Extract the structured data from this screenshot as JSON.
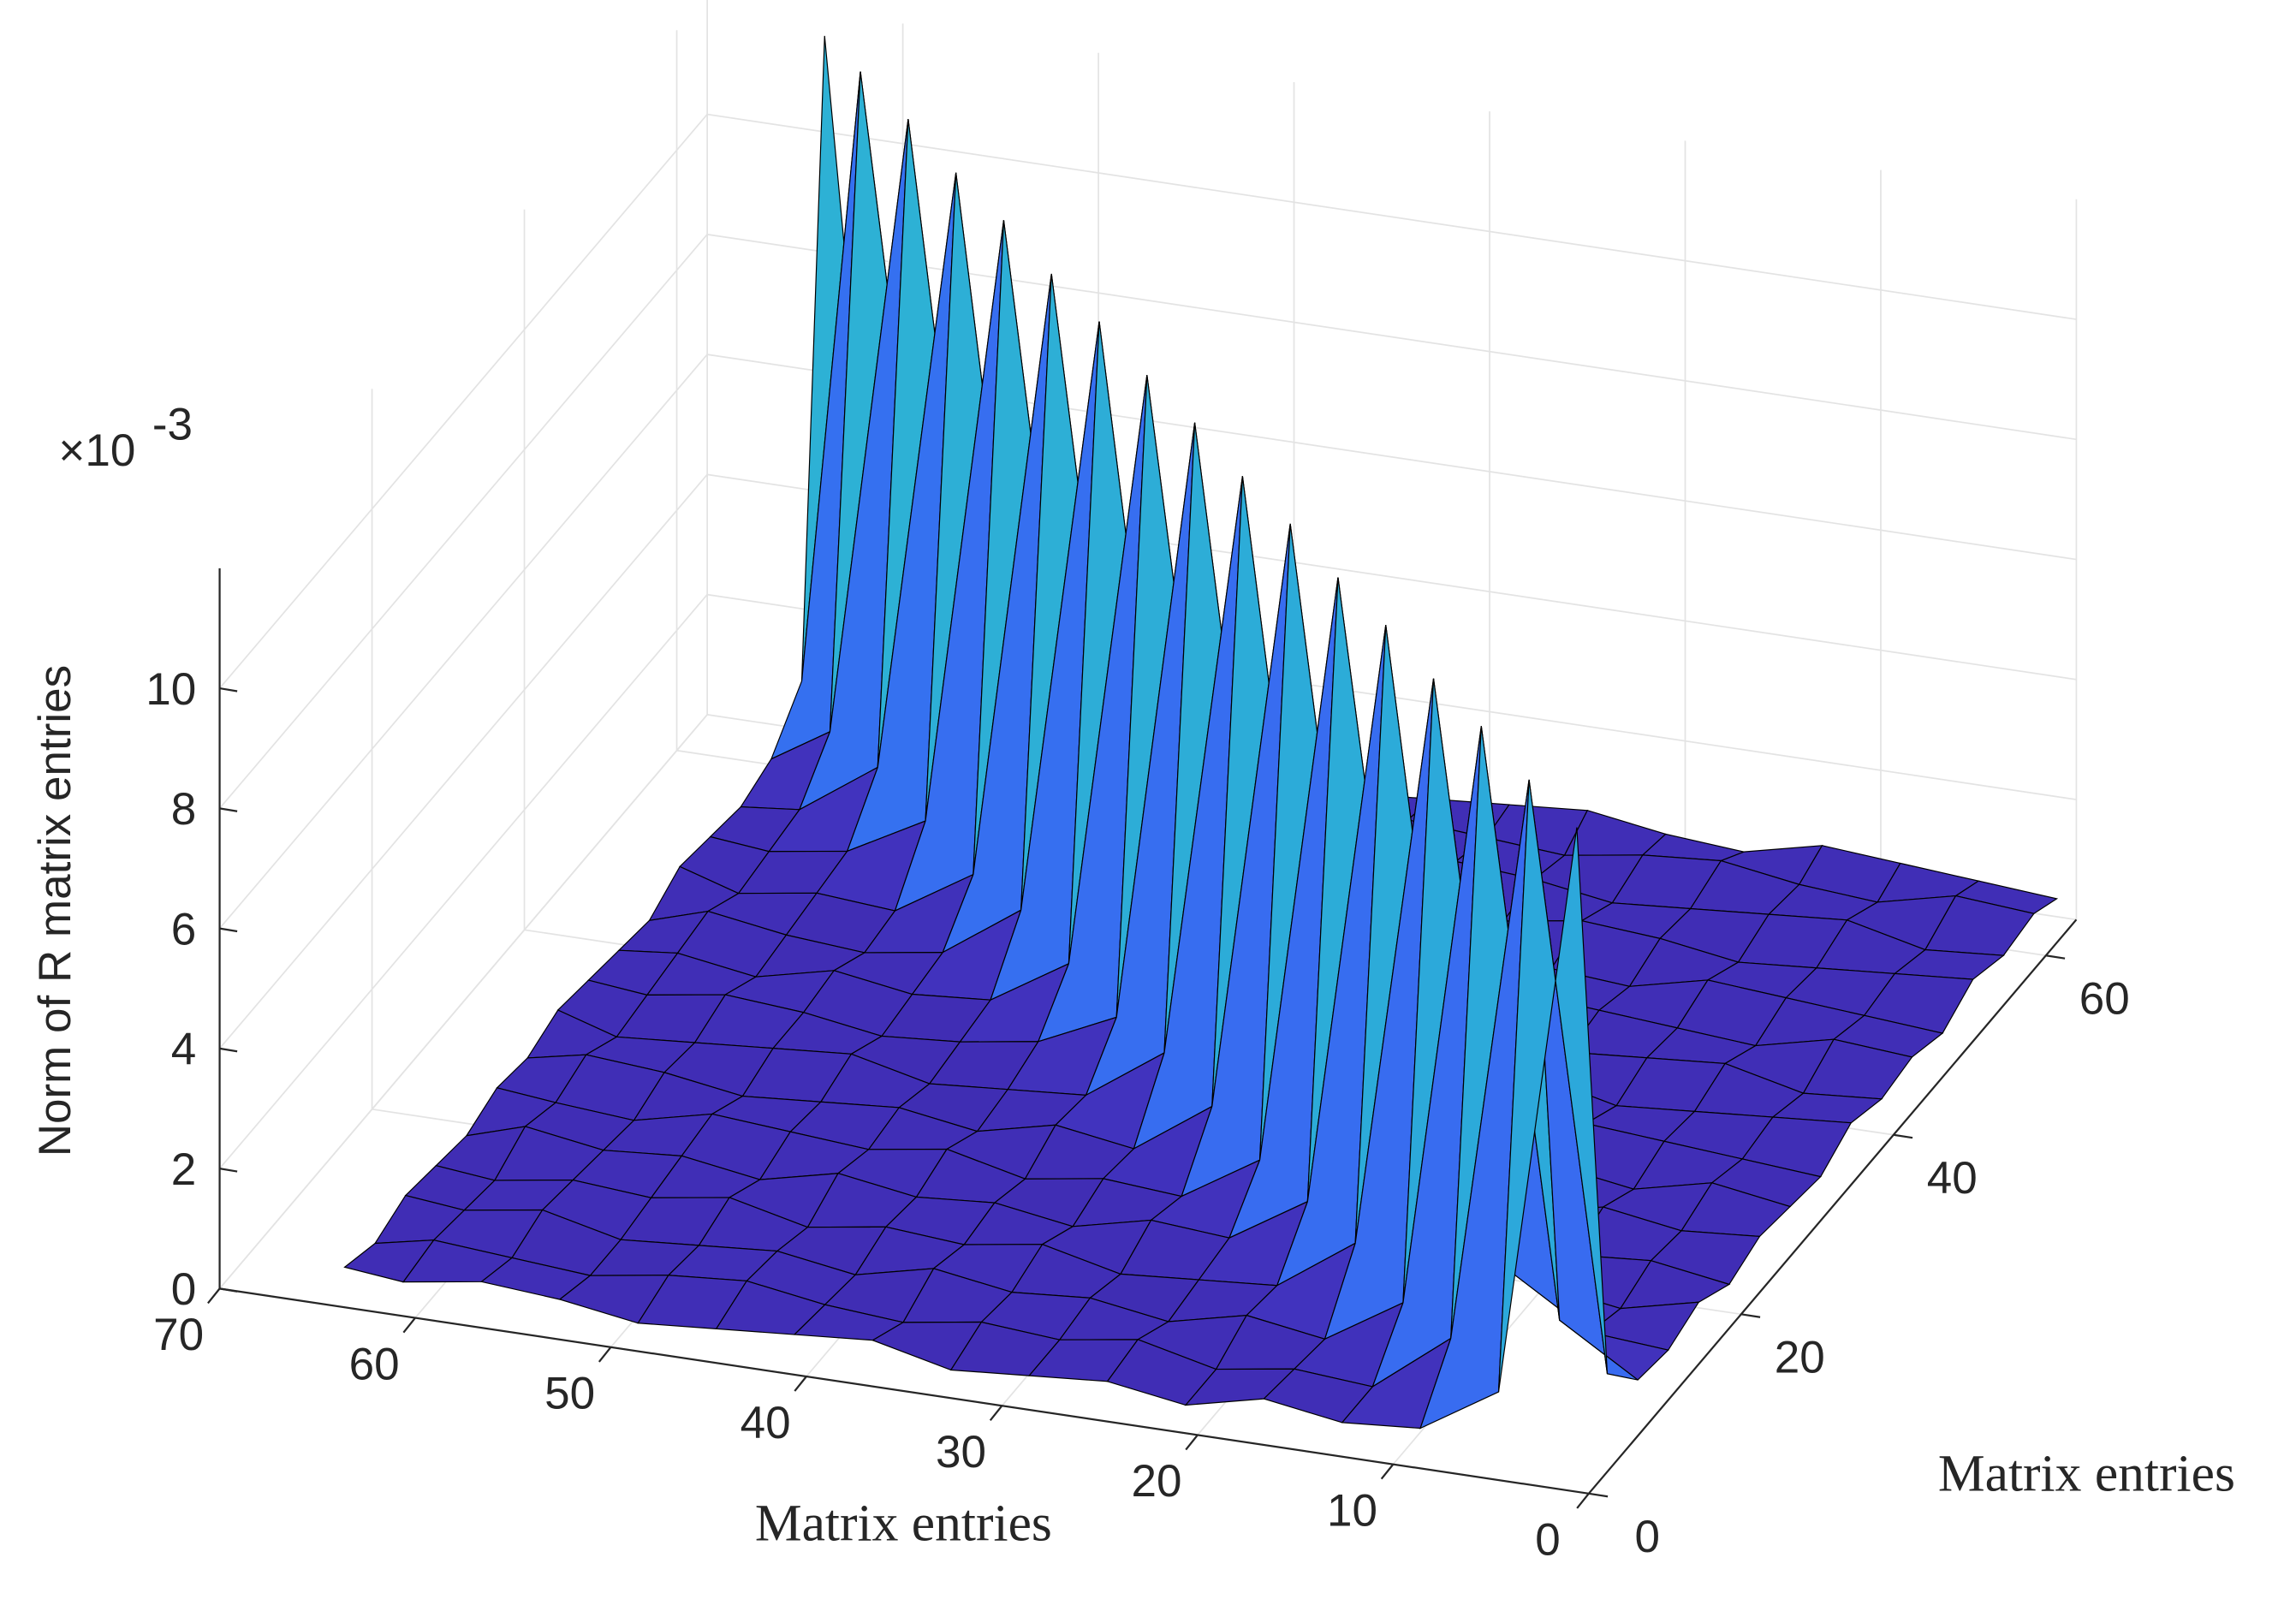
{
  "chart_data": {
    "type": "surface",
    "zlabel": "Norm of R matrix entries",
    "xlabel": "Matrix entries",
    "ylabel": "Matrix entries",
    "zscale_label": {
      "base": "×10",
      "exponent": "-3"
    },
    "x": [
      1,
      5,
      9,
      13,
      17,
      21,
      25,
      29,
      33,
      37,
      41,
      45,
      49,
      53,
      57,
      61,
      64
    ],
    "y": [
      1,
      5,
      9,
      13,
      17,
      21,
      25,
      29,
      33,
      37,
      41,
      45,
      49,
      53,
      57,
      61,
      64
    ],
    "z": [
      [
        10.9,
        1.3,
        0.5,
        0.4,
        0.6,
        0.3,
        0.5,
        0.4,
        0.3,
        0.6,
        0.5,
        0.4,
        0.3,
        0.5,
        0.6,
        0.4,
        0.5
      ],
      [
        1.2,
        10.9,
        1.4,
        0.4,
        0.5,
        0.3,
        0.6,
        0.4,
        0.5,
        0.3,
        0.4,
        0.6,
        0.5,
        0.3,
        0.4,
        0.5,
        0.3
      ],
      [
        0.5,
        1.3,
        11.0,
        1.2,
        0.4,
        0.6,
        0.3,
        0.5,
        0.4,
        0.6,
        0.3,
        0.5,
        0.4,
        0.3,
        0.6,
        0.4,
        0.5
      ],
      [
        0.4,
        0.5,
        1.3,
        11.0,
        1.4,
        0.5,
        0.4,
        0.3,
        0.6,
        0.4,
        0.5,
        0.3,
        0.6,
        0.4,
        0.5,
        0.3,
        0.4
      ],
      [
        0.6,
        0.3,
        0.5,
        1.2,
        11.1,
        1.3,
        0.5,
        0.6,
        0.3,
        0.5,
        0.4,
        0.6,
        0.3,
        0.5,
        0.4,
        0.6,
        0.3
      ],
      [
        0.3,
        0.5,
        0.4,
        0.6,
        1.4,
        11.1,
        1.2,
        0.4,
        0.5,
        0.3,
        0.6,
        0.4,
        0.5,
        0.6,
        0.3,
        0.4,
        0.5
      ],
      [
        0.5,
        0.4,
        0.6,
        0.3,
        0.5,
        1.3,
        11.2,
        1.3,
        0.4,
        0.6,
        0.3,
        0.5,
        0.4,
        0.3,
        0.5,
        0.6,
        0.4
      ],
      [
        0.4,
        0.6,
        0.3,
        0.5,
        0.4,
        0.6,
        1.2,
        11.2,
        1.4,
        0.5,
        0.4,
        0.3,
        0.6,
        0.5,
        0.4,
        0.3,
        0.6
      ],
      [
        0.3,
        0.4,
        0.5,
        0.6,
        0.3,
        0.4,
        0.5,
        1.3,
        11.3,
        1.2,
        0.6,
        0.4,
        0.3,
        0.5,
        0.6,
        0.4,
        0.5
      ],
      [
        0.6,
        0.5,
        0.4,
        0.3,
        0.6,
        0.5,
        0.4,
        0.6,
        1.4,
        11.3,
        1.3,
        0.5,
        0.4,
        0.6,
        0.3,
        0.5,
        0.4
      ],
      [
        0.4,
        0.3,
        0.6,
        0.5,
        0.4,
        0.3,
        0.6,
        0.5,
        0.4,
        1.2,
        11.4,
        1.4,
        0.5,
        0.3,
        0.4,
        0.6,
        0.3
      ],
      [
        0.5,
        0.6,
        0.3,
        0.4,
        0.5,
        0.6,
        0.3,
        0.4,
        0.5,
        0.6,
        1.3,
        11.4,
        1.2,
        0.4,
        0.5,
        0.3,
        0.6
      ],
      [
        0.3,
        0.4,
        0.5,
        0.6,
        0.3,
        0.4,
        0.5,
        0.3,
        0.6,
        0.4,
        0.5,
        1.4,
        11.5,
        1.3,
        0.6,
        0.4,
        0.5
      ],
      [
        0.6,
        0.5,
        0.4,
        0.3,
        0.5,
        0.6,
        0.4,
        0.5,
        0.3,
        0.5,
        0.4,
        0.6,
        1.2,
        11.5,
        1.4,
        0.5,
        0.4
      ],
      [
        0.4,
        0.3,
        0.6,
        0.5,
        0.4,
        0.3,
        0.5,
        0.6,
        0.4,
        0.3,
        0.6,
        0.5,
        0.4,
        1.3,
        11.6,
        1.2,
        0.6
      ],
      [
        0.5,
        0.6,
        0.3,
        0.4,
        0.6,
        0.5,
        0.3,
        0.4,
        0.5,
        0.6,
        0.3,
        0.4,
        0.5,
        0.6,
        1.4,
        11.6,
        1.3
      ],
      [
        0.3,
        0.4,
        0.5,
        0.6,
        0.3,
        0.4,
        0.6,
        0.5,
        0.4,
        0.3,
        0.5,
        0.6,
        0.3,
        0.4,
        0.5,
        1.3,
        11.6
      ]
    ],
    "xlim": [
      0,
      70
    ],
    "xticks": [
      0,
      10,
      20,
      30,
      40,
      50,
      60,
      70
    ],
    "ylim": [
      0,
      64
    ],
    "yticks": [
      0,
      20,
      40,
      60
    ],
    "zlim": [
      0,
      12
    ],
    "zticks": [
      0,
      2,
      4,
      6,
      8,
      10
    ],
    "grid": true,
    "colormap": "parula",
    "edgecolor": "#000000"
  }
}
